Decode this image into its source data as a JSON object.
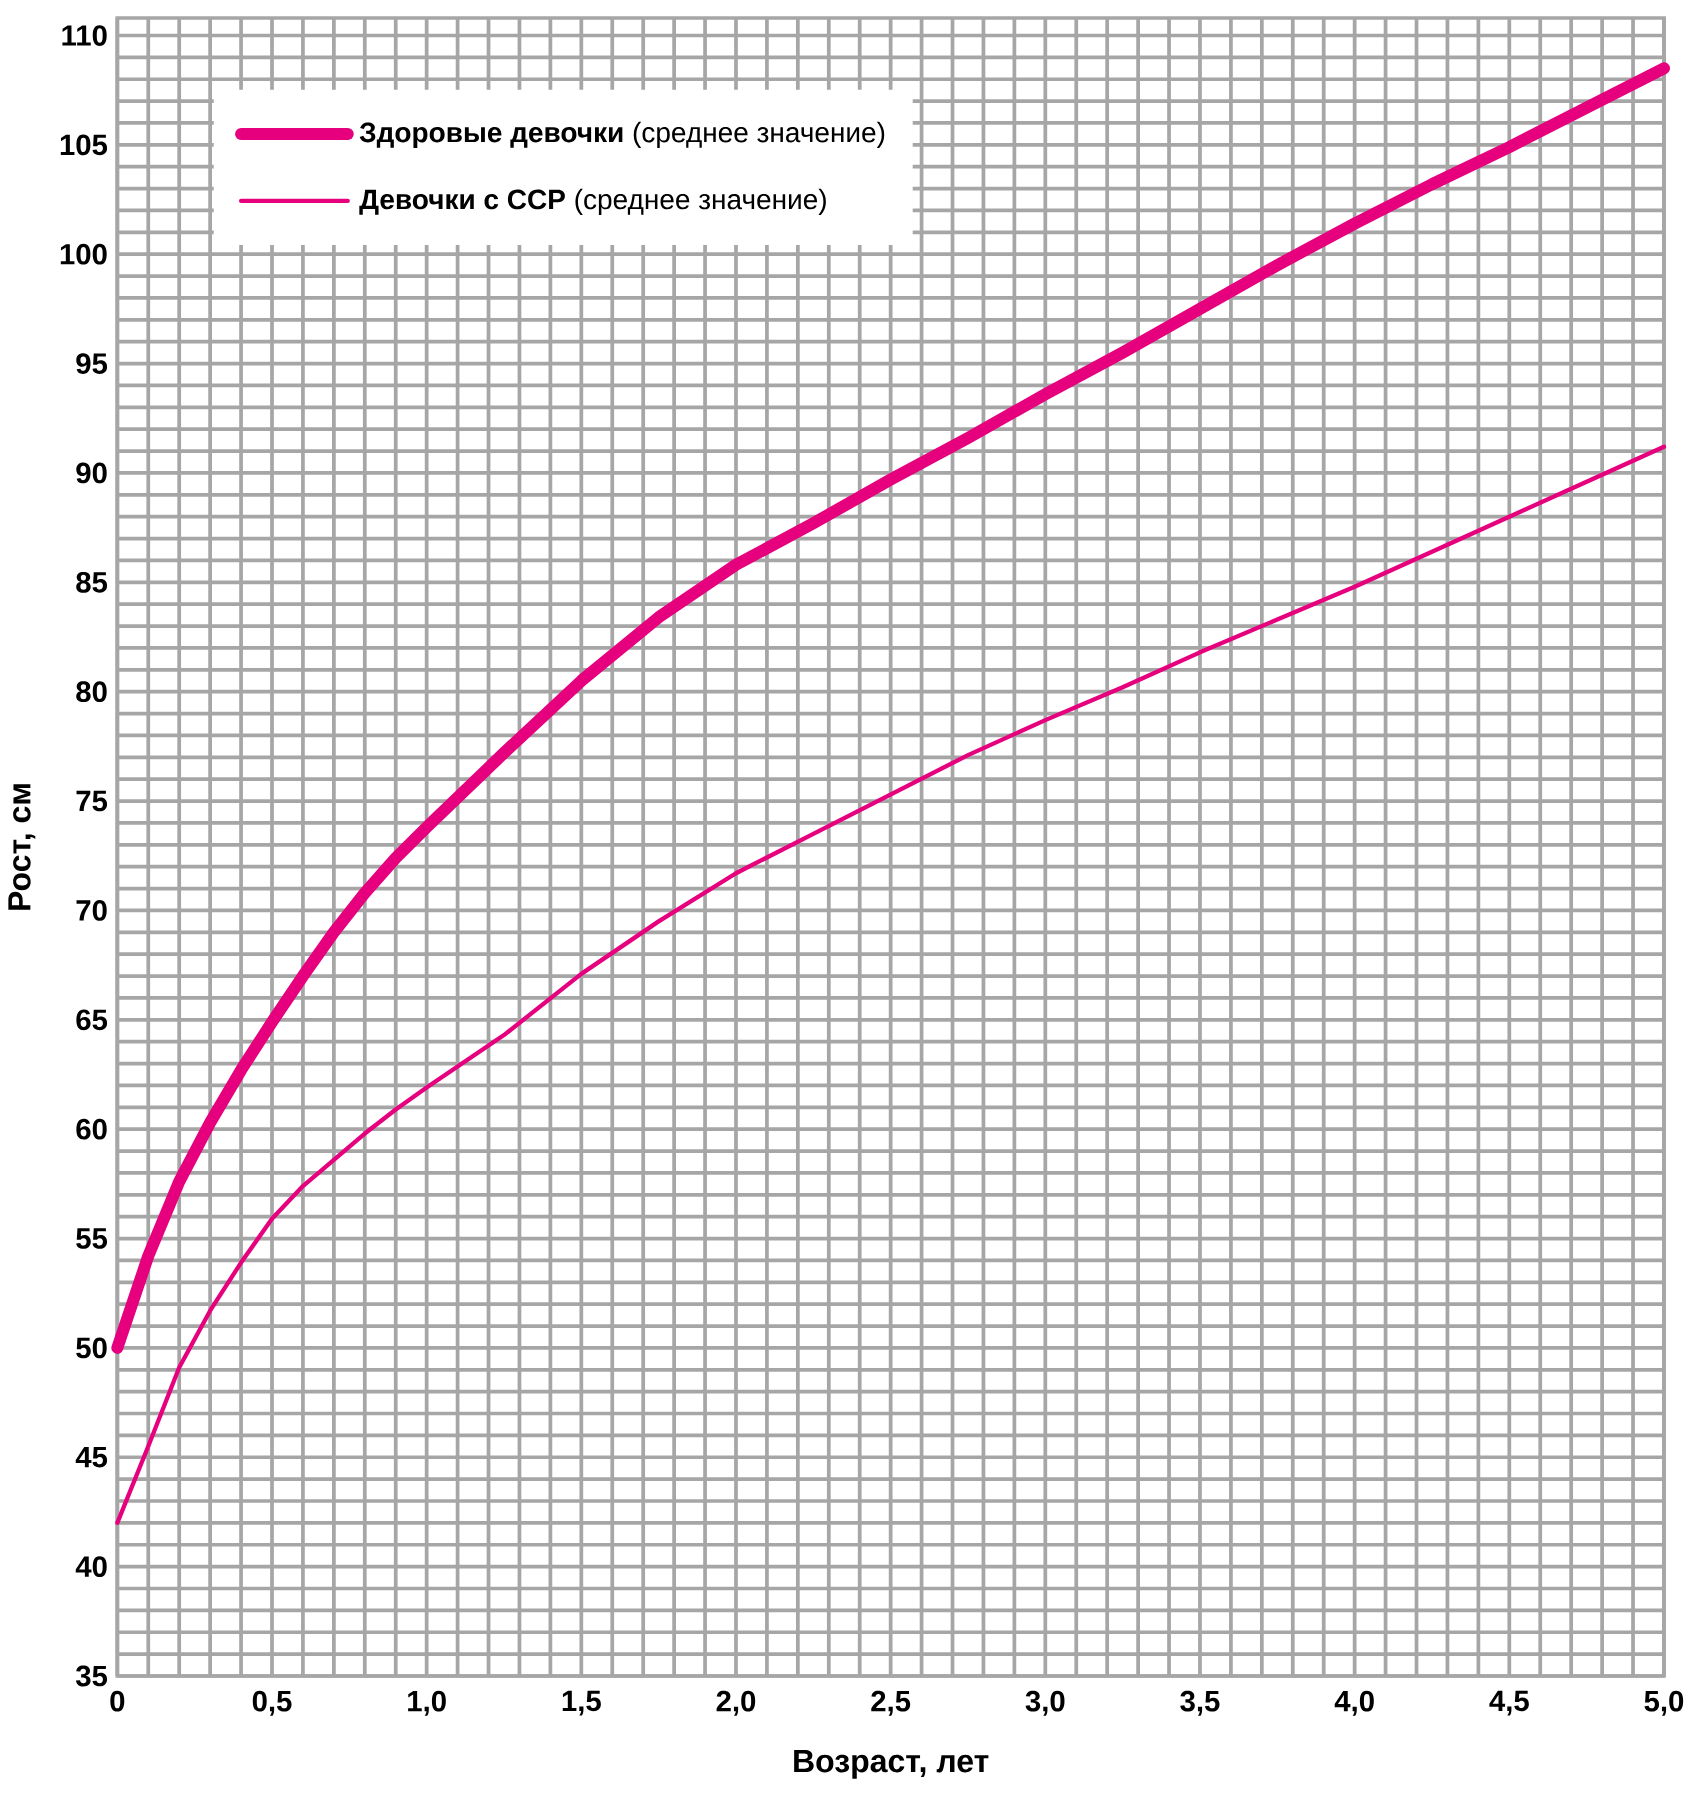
{
  "chart_data": {
    "type": "line",
    "xlabel": "Возраст, лет",
    "ylabel": "Рост, см",
    "xlim": [
      0,
      5
    ],
    "ylim": [
      35,
      110.8
    ],
    "xticks": [
      0,
      {
        "value": 0.5,
        "label": "0,5"
      },
      {
        "value": 1,
        "label": "1,0"
      },
      {
        "value": 1.5,
        "label": "1,5"
      },
      {
        "value": 2,
        "label": "2,0"
      },
      {
        "value": 2.5,
        "label": "2,5"
      },
      {
        "value": 3,
        "label": "3,0"
      },
      {
        "value": 3.5,
        "label": "3,5"
      },
      {
        "value": 4,
        "label": "4,0"
      },
      {
        "value": 4.5,
        "label": "4,5"
      },
      {
        "value": 5,
        "label": "5,0"
      }
    ],
    "yticks": [
      35,
      40,
      45,
      50,
      55,
      60,
      65,
      70,
      75,
      80,
      85,
      90,
      95,
      100,
      105,
      110
    ],
    "grid": true,
    "legend": "top left",
    "marker": "none",
    "line_style": "solid",
    "x": [
      0,
      0.1,
      0.2,
      0.3,
      0.4,
      0.5,
      0.6,
      0.7,
      0.8,
      0.9,
      1,
      1.25,
      1.5,
      1.75,
      2,
      2.25,
      2.5,
      2.75,
      3,
      3.25,
      3.5,
      3.75,
      4,
      4.25,
      4.5,
      4.75,
      5
    ],
    "series": [
      {
        "name": "**Здоровые девочки** (среднее значение)",
        "color": "#e6007e",
        "values": [
          50,
          54.2,
          57.6,
          60.3,
          62.7,
          64.9,
          67.0,
          69.0,
          70.8,
          72.4,
          73.8,
          77.2,
          80.5,
          83.4,
          85.8,
          87.7,
          89.7,
          91.6,
          93.6,
          95.5,
          97.5,
          99.5,
          101.4,
          103.2,
          104.9,
          106.7,
          108.5
        ]
      },
      {
        "name": "**Девочки с ССР** (среднее значение)",
        "color": "#e6007e",
        "values": [
          42,
          45.5,
          49.1,
          51.7,
          53.9,
          55.9,
          57.4,
          58.6,
          59.8,
          60.9,
          61.9,
          64.3,
          67.1,
          69.5,
          71.7,
          73.5,
          75.3,
          77.1,
          78.7,
          80.2,
          81.8,
          83.3,
          84.8,
          86.4,
          88.0,
          89.6,
          91.2
        ]
      }
    ]
  }
}
